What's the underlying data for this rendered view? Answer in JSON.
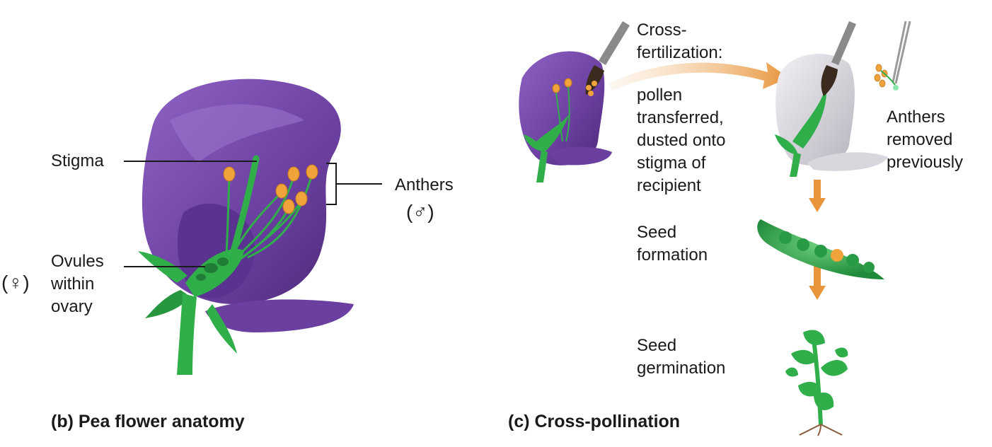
{
  "panel_b": {
    "caption": "(b) Pea flower anatomy",
    "labels": {
      "stigma": "Stigma",
      "anthers": "Anthers",
      "male_symbol": "(♂)",
      "female_symbol": "(♀)",
      "ovules_line1": "Ovules",
      "ovules_line2": "within",
      "ovules_line3": "ovary"
    }
  },
  "panel_c": {
    "caption": "(c) Cross-pollination",
    "labels": {
      "cross_line1": "Cross-",
      "cross_line2": "fertilization:",
      "pollen_line1": "pollen",
      "pollen_line2": "transferred,",
      "pollen_line3": "dusted onto",
      "pollen_line4": "stigma of",
      "pollen_line5": "recipient",
      "anthers_line1": "Anthers",
      "anthers_line2": "removed",
      "anthers_line3": "previously",
      "seed_form_line1": "Seed",
      "seed_form_line2": "formation",
      "seed_germ_line1": "Seed",
      "seed_germ_line2": "germination"
    }
  },
  "colors": {
    "petal_purple": "#6b3fa0",
    "stem_green": "#2fae4a",
    "anther_orange": "#f0a33a",
    "arrow_orange": "#e8943a",
    "white_petal": "#d9d6de"
  }
}
